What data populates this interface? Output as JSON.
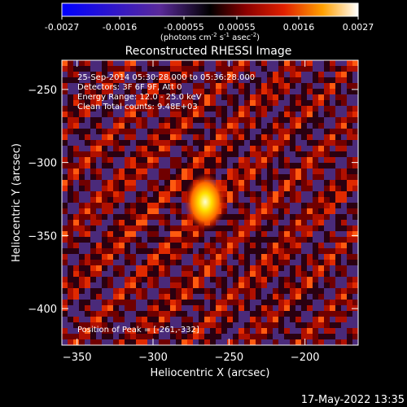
{
  "chart_data": {
    "type": "heatmap",
    "title": "Reconstructed RHESSI Image",
    "xlabel": "Heliocentric X (arcsec)",
    "ylabel": "Heliocentric Y (arcsec)",
    "xlim": [
      -360,
      -165
    ],
    "ylim": [
      -425,
      -230
    ],
    "x_ticks": [
      -350,
      -300,
      -250,
      -200
    ],
    "y_ticks": [
      -250,
      -300,
      -350,
      -400
    ],
    "colorbar": {
      "range": [
        -0.0027,
        0.0027
      ],
      "ticks": [
        "-0.0027",
        "-0.0016",
        "-0.00055",
        "0.00055",
        "0.0016",
        "0.0027"
      ],
      "unit_label_parts": {
        "open": "(photons cm",
        "exp1": "-2",
        "mid1": " s",
        "exp2": "-1",
        "mid2": " asec",
        "exp3": "-2",
        "close": ")"
      }
    },
    "annotations": [
      "25-Sep-2014 05:30:28.000 to 05:36:28.000",
      "Detectors: 3F 6F 9F, Att 0",
      "Energy Range: 12.0 - 25.0 keV",
      "Clean     Total counts: 9.48E+03"
    ],
    "peak_label": "Position of Peak = [-261,-332]",
    "peak": {
      "x": -261,
      "y": -332,
      "value": 0.0027
    },
    "grid": false
  },
  "footer_timestamp": "17-May-2022 13:35"
}
